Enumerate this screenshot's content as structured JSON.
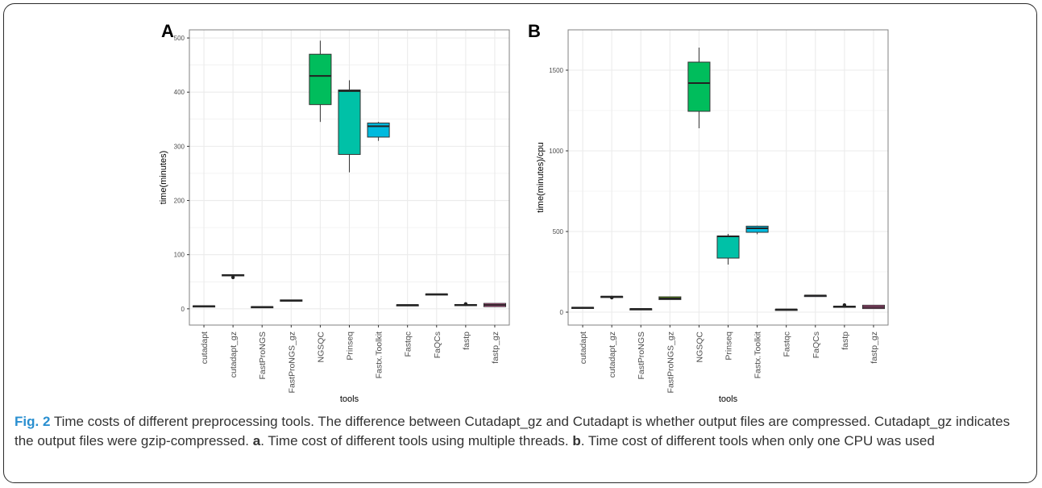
{
  "caption": {
    "label": "Fig. 2",
    "part1": " Time costs of different preprocessing tools. The difference between Cutadapt_gz and Cutadapt is whether output files are compressed. Cutadapt_gz indicates the output files were gzip-compressed. ",
    "ref_a": "a",
    "part2": ". Time cost of different tools using multiple threads. ",
    "ref_b": "b",
    "part3": ". Time cost of different tools when only one CPU was used"
  },
  "chart_data": [
    {
      "type": "box",
      "panel_label": "A",
      "xlabel": "tools",
      "ylabel": "time(minutes)",
      "ylim": [
        -30,
        515
      ],
      "yticks": [
        0,
        100,
        200,
        300,
        400,
        500
      ],
      "grid": true,
      "categories": [
        "cutadapt",
        "cutadapt_gz",
        "FastProNGS",
        "FastProNGS_gz",
        "NGSQC",
        "Prinseq",
        "Fastx.Toolkit",
        "Fastqc",
        "FaQCs",
        "fastp",
        "fastp_gz"
      ],
      "boxes": [
        {
          "q1": 4,
          "median": 5,
          "q3": 5.5,
          "lower": 4,
          "upper": 5.5,
          "outliers": []
        },
        {
          "q1": 61.5,
          "median": 62,
          "q3": 63,
          "lower": 61.5,
          "upper": 63,
          "outliers": [
            58
          ]
        },
        {
          "q1": 3,
          "median": 3.5,
          "q3": 4,
          "lower": 3,
          "upper": 4,
          "outliers": []
        },
        {
          "q1": 14,
          "median": 15,
          "q3": 16.5,
          "lower": 14,
          "upper": 16.5,
          "outliers": []
        },
        {
          "q1": 377,
          "median": 430,
          "q3": 470,
          "lower": 345,
          "upper": 495,
          "outliers": []
        },
        {
          "q1": 285,
          "median": 402,
          "q3": 404,
          "lower": 252,
          "upper": 422,
          "outliers": []
        },
        {
          "q1": 317,
          "median": 337,
          "q3": 343,
          "lower": 310,
          "upper": 345,
          "outliers": []
        },
        {
          "q1": 6.5,
          "median": 7,
          "q3": 7.5,
          "lower": 6.5,
          "upper": 7.5,
          "outliers": []
        },
        {
          "q1": 26.5,
          "median": 27,
          "q3": 27.5,
          "lower": 26.5,
          "upper": 27.5,
          "outliers": []
        },
        {
          "q1": 6,
          "median": 7,
          "q3": 8,
          "lower": 6,
          "upper": 8,
          "outliers": [
            9
          ]
        },
        {
          "q1": 4,
          "median": 7,
          "q3": 10,
          "lower": 4,
          "upper": 10,
          "outliers": []
        }
      ]
    },
    {
      "type": "box",
      "panel_label": "B",
      "xlabel": "tools",
      "ylabel": "time(minutes)/cpu",
      "ylim": [
        -80,
        1750
      ],
      "yticks": [
        0,
        500,
        1000,
        1500
      ],
      "grid": true,
      "categories": [
        "cutadapt",
        "cutadapt_gz",
        "FastProNGS",
        "FastProNGS_gz",
        "NGSQC",
        "Prinseq",
        "Fastx.Toolkit",
        "Fastqc",
        "FaQCs",
        "fastp",
        "fastp_gz"
      ],
      "boxes": [
        {
          "q1": 26,
          "median": 28,
          "q3": 30,
          "lower": 26,
          "upper": 30,
          "outliers": []
        },
        {
          "q1": 94,
          "median": 96,
          "q3": 98,
          "lower": 94,
          "upper": 98,
          "outliers": [
            90
          ]
        },
        {
          "q1": 18,
          "median": 20,
          "q3": 21,
          "lower": 18,
          "upper": 21,
          "outliers": []
        },
        {
          "q1": 78,
          "median": 85,
          "q3": 95,
          "lower": 78,
          "upper": 95,
          "outliers": []
        },
        {
          "q1": 1245,
          "median": 1420,
          "q3": 1550,
          "lower": 1140,
          "upper": 1640,
          "outliers": []
        },
        {
          "q1": 335,
          "median": 470,
          "q3": 472,
          "lower": 295,
          "upper": 485,
          "outliers": []
        },
        {
          "q1": 495,
          "median": 520,
          "q3": 533,
          "lower": 483,
          "upper": 536,
          "outliers": []
        },
        {
          "q1": 16,
          "median": 17,
          "q3": 18,
          "lower": 16,
          "upper": 18,
          "outliers": []
        },
        {
          "q1": 100,
          "median": 103,
          "q3": 104,
          "lower": 100,
          "upper": 104,
          "outliers": []
        },
        {
          "q1": 30,
          "median": 35,
          "q3": 37,
          "lower": 30,
          "upper": 37,
          "outliers": [
            44
          ]
        },
        {
          "q1": 22,
          "median": 32,
          "q3": 43,
          "lower": 22,
          "upper": 43,
          "outliers": []
        }
      ]
    }
  ],
  "colors": {
    "fills": [
      "#F8766D",
      "#DB8E00",
      "#AEA200",
      "#64B200",
      "#00BD5C",
      "#00C1A7",
      "#00BADE",
      "#00A6FF",
      "#B385FF",
      "#EF67EB",
      "#FF63B6"
    ],
    "panel_border": "#808080",
    "grid": "#ebebeb",
    "caption_label": "#2a8fd0"
  }
}
